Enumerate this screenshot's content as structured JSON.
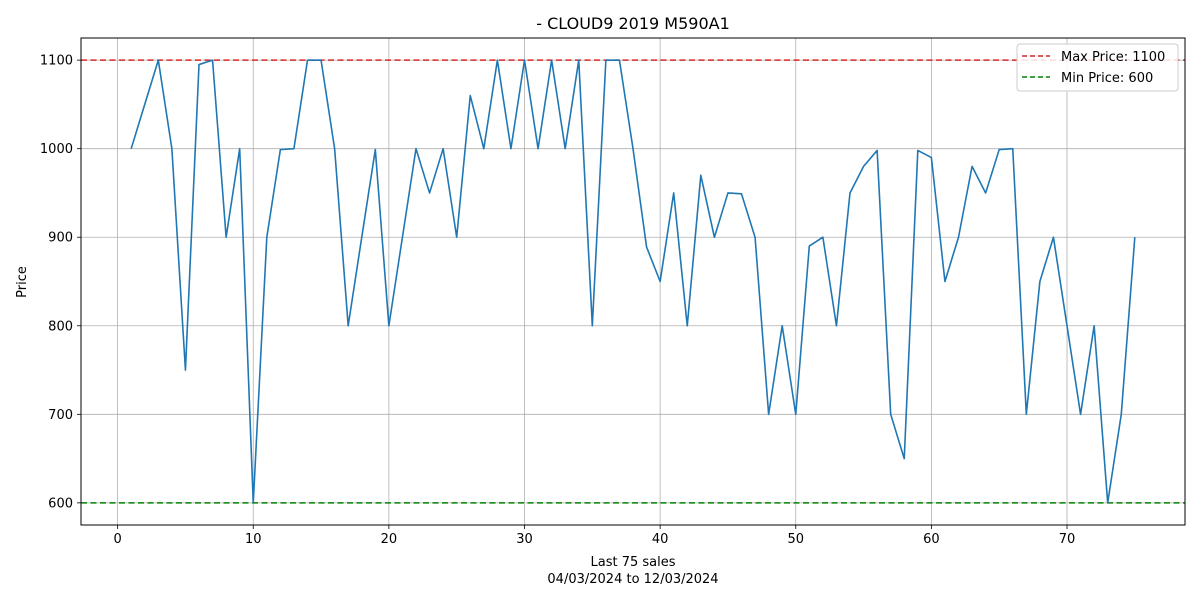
{
  "chart_data": {
    "type": "line",
    "title": "- CLOUD9 2019 M590A1",
    "xlabel_line1": "Last 75 sales",
    "xlabel_line2": "04/03/2024 to 12/03/2024",
    "ylabel": "Price",
    "xlim": [
      -2.7,
      78.7
    ],
    "ylim": [
      575,
      1125
    ],
    "x_ticks": [
      0,
      10,
      20,
      30,
      40,
      50,
      60,
      70
    ],
    "y_ticks": [
      600,
      700,
      800,
      900,
      1000,
      1100
    ],
    "grid": true,
    "legend_position": "top-right",
    "series": [
      {
        "name": "Price",
        "color": "#1f77b4",
        "x": [
          1,
          2,
          3,
          4,
          5,
          6,
          7,
          8,
          9,
          10,
          11,
          12,
          13,
          14,
          15,
          16,
          17,
          18,
          19,
          20,
          21,
          22,
          23,
          24,
          25,
          26,
          27,
          28,
          29,
          30,
          31,
          32,
          33,
          34,
          35,
          36,
          37,
          38,
          39,
          40,
          41,
          42,
          43,
          44,
          45,
          46,
          47,
          48,
          49,
          50,
          51,
          52,
          53,
          54,
          55,
          56,
          57,
          58,
          59,
          60,
          61,
          62,
          63,
          64,
          65,
          66,
          67,
          68,
          69,
          70,
          71,
          72,
          73,
          74,
          75
        ],
        "values": [
          1000,
          1050,
          1100,
          1000,
          750,
          1095,
          1100,
          900,
          1000,
          600,
          900,
          999,
          1000,
          1100,
          1100,
          1000,
          800,
          900,
          999,
          800,
          900,
          1000,
          950,
          1000,
          900,
          1060,
          1000,
          1100,
          1000,
          1100,
          1000,
          1100,
          1000,
          1100,
          800,
          1100,
          1100,
          1000,
          889,
          850,
          950,
          800,
          970,
          900,
          950,
          949,
          900,
          700,
          800,
          700,
          890,
          900,
          800,
          950,
          980,
          998,
          700,
          650,
          998,
          990,
          850,
          900,
          980,
          950,
          999,
          1000,
          700,
          850,
          900,
          800,
          700,
          800,
          600,
          700,
          900
        ]
      }
    ],
    "reference_lines": [
      {
        "label": "Max Price: 1100",
        "value": 1100,
        "color": "#d62728",
        "style": "dashed"
      },
      {
        "label": "Min Price: 600",
        "value": 600,
        "color": "#008000",
        "style": "dashed"
      }
    ]
  }
}
